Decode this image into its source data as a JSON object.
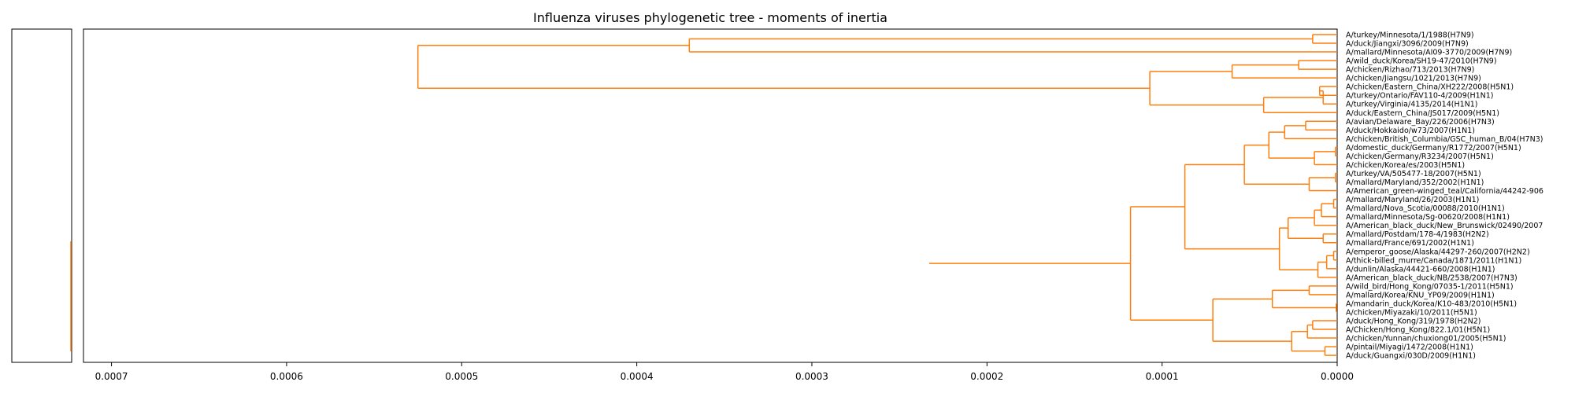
{
  "chart_data": {
    "type": "dendrogram",
    "title": "Influenza viruses phylogenetic tree - moments of inertia",
    "xlim": [
      0.000716,
      0.0
    ],
    "x_ticks": [
      0.0007,
      0.0006,
      0.0005,
      0.0004,
      0.0003,
      0.0002,
      0.0001,
      0.0
    ],
    "x_tick_labels": [
      "0.0007",
      "0.0006",
      "0.0005",
      "0.0004",
      "0.0003",
      "0.0002",
      "0.0001",
      "0.0000"
    ],
    "color": "#ff7f0e",
    "leaves": [
      "A/turkey/Minnesota/1/1988(H7N9)",
      "A/duck/Jiangxi/3096/2009(H7N9)",
      "A/mallard/Minnesota/AI09-3770/2009(H7N9)",
      "A/wild_duck/Korea/SH19-47/2010(H7N9)",
      "A/chicken/Rizhao/713/2013(H7N9)",
      "A/chicken/Jiangsu/1021/2013(H7N9)",
      "A/chicken/Eastern_China/XH222/2008(H5N1)",
      "A/turkey/Ontario/FAV110-4/2009(H1N1)",
      "A/turkey/Virginia/4135/2014(H1N1)",
      "A/duck/Eastern_China/JS017/2009(H5N1)",
      "A/avian/Delaware_Bay/226/2006(H7N3)",
      "A/duck/Hokkaido/w73/2007(H1N1)",
      "A/chicken/British_Columbia/GSC_human_B/04(H7N3)",
      "A/domestic_duck/Germany/R1772/2007(H5N1)",
      "A/chicken/Germany/R3234/2007(H5N1)",
      "A/chicken/Korea/es/2003(H5N1)",
      "A/turkey/VA/505477-18/2007(H5N1)",
      "A/mallard/Maryland/352/2002(H1N1)",
      "A/American_green-winged_teal/California/44242-906",
      "A/mallard/Maryland/26/2003(H1N1)",
      "A/mallard/Nova_Scotia/00088/2010(H1N1)",
      "A/mallard/Minnesota/Sg-00620/2008(H1N1)",
      "A/American_black_duck/New_Brunswick/02490/2007",
      "A/mallard/Postdam/178-4/1983(H2N2)",
      "A/mallard/France/691/2002(H1N1)",
      "A/emperor_goose/Alaska/44297-260/2007(H2N2)",
      "A/thick-billed_murre/Canada/1871/2011(H1N1)",
      "A/dunlin/Alaska/44421-660/2008(H1N1)",
      "A/American_black_duck/NB/2538/2007(H7N3)",
      "A/wild_bird/Hong_Kong/07035-1/2011(H5N1)",
      "A/mallard/Korea/KNU_YP09/2009(H1N1)",
      "A/mandarin_duck/Korea/K10-483/2010(H5N1)",
      "A/chicken/Miyazaki/10/2011(H5N1)",
      "A/duck/Hong_Kong/319/1978(H2N2)",
      "A/Chicken/Hong_Kong/822.1/01(H5N1)",
      "A/chicken/Yunnan/chuxiong01/2005(H5N1)",
      "A/pintail/Miyagi/1472/2008(H1N1)",
      "A/duck/Guangxi/030D/2009(H1N1)"
    ],
    "merges": [
      {
        "h": 1.4e-05,
        "a": "L0",
        "b": "L1"
      },
      {
        "h": 0.00037,
        "a": "N0",
        "b": "L2"
      },
      {
        "h": 2.2e-05,
        "a": "L3",
        "b": "L4"
      },
      {
        "h": 6e-05,
        "a": "N2",
        "b": "L5"
      },
      {
        "h": 1e-05,
        "a": "L6",
        "b": "L7"
      },
      {
        "h": 8e-06,
        "a": "N4",
        "b": "L8"
      },
      {
        "h": 4.2e-05,
        "a": "N5",
        "b": "L9"
      },
      {
        "h": 0.000107,
        "a": "N3",
        "b": "N6"
      },
      {
        "h": 0.000525,
        "a": "N1",
        "b": "N7"
      },
      {
        "h": 1.8e-05,
        "a": "L10",
        "b": "L11"
      },
      {
        "h": 3e-05,
        "a": "N9",
        "b": "L12"
      },
      {
        "h": 1e-06,
        "a": "L13",
        "b": "L14"
      },
      {
        "h": 1.3e-05,
        "a": "N11",
        "b": "L15"
      },
      {
        "h": 3.9e-05,
        "a": "N10",
        "b": "N12"
      },
      {
        "h": 1e-06,
        "a": "L16",
        "b": "L17"
      },
      {
        "h": 1.6e-05,
        "a": "N14",
        "b": "L18"
      },
      {
        "h": 5.3e-05,
        "a": "N13",
        "b": "N15"
      },
      {
        "h": 2e-06,
        "a": "L19",
        "b": "L20"
      },
      {
        "h": 9e-06,
        "a": "N17",
        "b": "L21"
      },
      {
        "h": 1.3e-05,
        "a": "N18",
        "b": "L22"
      },
      {
        "h": 8e-06,
        "a": "L23",
        "b": "L24"
      },
      {
        "h": 2.8e-05,
        "a": "N19",
        "b": "N20"
      },
      {
        "h": 2e-06,
        "a": "L25",
        "b": "L26"
      },
      {
        "h": 6e-06,
        "a": "N22",
        "b": "L27"
      },
      {
        "h": 1.1e-05,
        "a": "N23",
        "b": "L28"
      },
      {
        "h": 3.3e-05,
        "a": "N21",
        "b": "N24"
      },
      {
        "h": 8.7e-05,
        "a": "N16",
        "b": "N25"
      },
      {
        "h": 1.6e-05,
        "a": "L29",
        "b": "L30"
      },
      {
        "h": 5e-07,
        "a": "L31",
        "b": "L32"
      },
      {
        "h": 3.7e-05,
        "a": "N27",
        "b": "N28"
      },
      {
        "h": 1.4e-05,
        "a": "L33",
        "b": "L34"
      },
      {
        "h": 1.7e-05,
        "a": "N30",
        "b": "L35"
      },
      {
        "h": 7e-06,
        "a": "L36",
        "b": "L37"
      },
      {
        "h": 2.6e-05,
        "a": "N31",
        "b": "N32"
      },
      {
        "h": 7.1e-05,
        "a": "N29",
        "b": "N33"
      },
      {
        "h": 0.000118,
        "a": "N26",
        "b": "N34"
      },
      {
        "h": 0.000233,
        "a": "N35",
        "b": "N35"
      }
    ]
  }
}
